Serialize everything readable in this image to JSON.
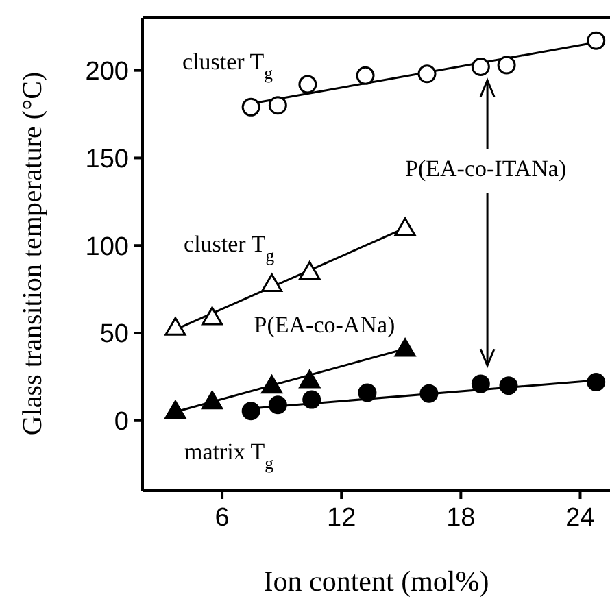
{
  "chart_data": {
    "type": "scatter",
    "xlabel": "Ion content (mol%)",
    "ylabel": "Glass transition temperature (°C)",
    "xlim": [
      2,
      25.5
    ],
    "ylim": [
      -40,
      230
    ],
    "xticks": [
      6,
      12,
      18,
      24
    ],
    "yticks": [
      0,
      50,
      100,
      150,
      200
    ],
    "series": [
      {
        "marker": "circle",
        "color": "#ffffff",
        "x": [
          7.45,
          8.8,
          10.3,
          13.2,
          16.3,
          19.0,
          20.3,
          24.8
        ],
        "values": [
          179,
          180,
          192,
          197,
          198,
          202,
          203,
          217
        ]
      },
      {
        "marker": "triangle",
        "color": "#ffffff",
        "x": [
          3.65,
          5.5,
          8.5,
          10.4,
          15.2
        ],
        "values": [
          53,
          59,
          78,
          85,
          110
        ]
      },
      {
        "marker": "triangle",
        "color": "#000000",
        "x": [
          3.65,
          5.5,
          8.5,
          10.4,
          15.2
        ],
        "values": [
          5.5,
          11,
          20,
          23,
          41
        ]
      },
      {
        "marker": "circle",
        "color": "#000000",
        "x": [
          7.45,
          8.8,
          10.5,
          13.3,
          16.4,
          19.0,
          20.4,
          24.8
        ],
        "values": [
          5.5,
          9,
          12,
          16,
          15.5,
          21,
          20,
          22
        ]
      },
      {
        "type": "line",
        "marker": "none",
        "color": "#000000",
        "x": [
          7.45,
          24.8
        ],
        "values": [
          181,
          216
        ]
      },
      {
        "type": "line",
        "marker": "none",
        "color": "#000000",
        "x": [
          3.65,
          15.2
        ],
        "values": [
          52,
          110
        ]
      },
      {
        "type": "line",
        "marker": "none",
        "color": "#000000",
        "x": [
          3.65,
          15.2
        ],
        "values": [
          5,
          41
        ]
      },
      {
        "type": "line",
        "marker": "none",
        "color": "#000000",
        "x": [
          7.45,
          24.8
        ],
        "values": [
          7,
          23
        ]
      }
    ],
    "annotations": [
      "cluster T$_{g}$",
      "cluster T$_{g}$",
      "P(EA-co-ANa)",
      "matrix T$_{g}$",
      "P(EA-co-ITANa)"
    ]
  }
}
